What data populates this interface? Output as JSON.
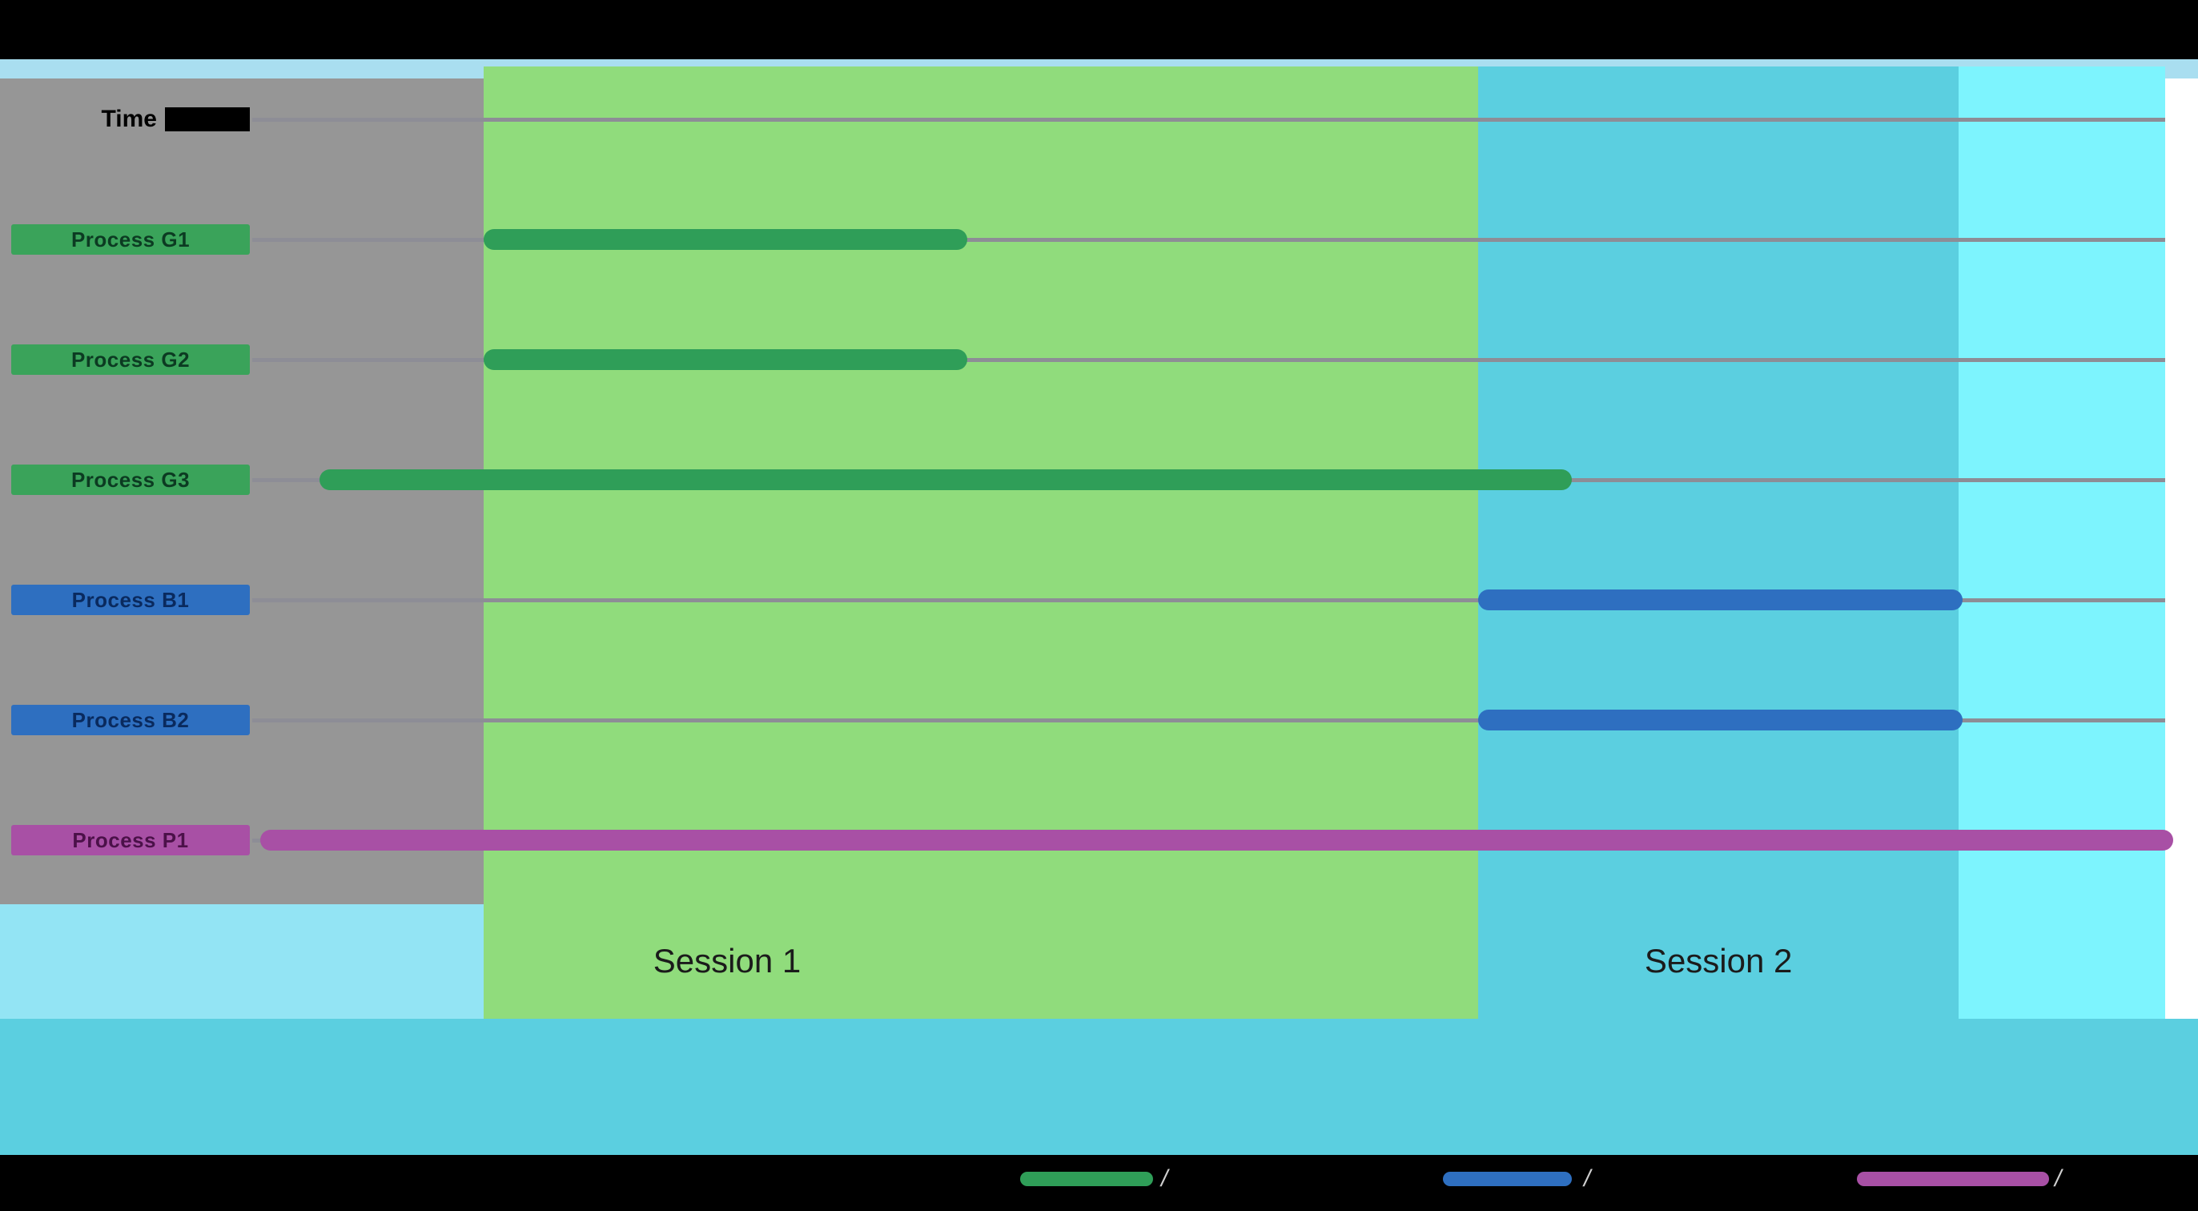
{
  "colors": {
    "background": "#000000",
    "top_band": "#a9def0",
    "bottom_band": "#5bcfe0",
    "pre_bg": "#969696",
    "session1_bg": "#90dc7c",
    "session2_bg": "#5bcfe0",
    "post_bg": "#7df4fe",
    "right_strip": "#ffffff",
    "left_lower": "#93e4f4",
    "gridline": "#8d8d96",
    "green_bar": "#2f9e58",
    "green_pill": "#3aa35a",
    "blue_bar": "#2e6fc0",
    "blue_pill": "#2e6fc0",
    "purple_bar": "#a850a5",
    "purple_pill": "#a850a5",
    "green_pill_text": "#0c3b22",
    "blue_pill_text": "#0a2a5e",
    "purple_pill_text": "#4b1149",
    "axis_text": "#000000",
    "axis_box": "#000000",
    "session_label_text": "#1b1b1b"
  },
  "chart_data": {
    "type": "gantt",
    "title": "",
    "time_axis": {
      "label": "Time",
      "unit": "relative",
      "range": [
        0,
        100
      ]
    },
    "rows": [
      {
        "id": "time-axis",
        "label": "Time",
        "category": "axis"
      },
      {
        "id": "g1",
        "label": "Process G1",
        "category": "green"
      },
      {
        "id": "g2",
        "label": "Process G2",
        "category": "green"
      },
      {
        "id": "g3",
        "label": "Process G3",
        "category": "green"
      },
      {
        "id": "b1",
        "label": "Process B1",
        "category": "blue"
      },
      {
        "id": "b2",
        "label": "Process B2",
        "category": "blue"
      },
      {
        "id": "p1",
        "label": "Process P1",
        "category": "purple"
      }
    ],
    "bars": [
      {
        "row": 1,
        "start": 12.1,
        "end": 37.4,
        "category": "green"
      },
      {
        "row": 2,
        "start": 12.1,
        "end": 37.4,
        "category": "green"
      },
      {
        "row": 3,
        "start": 3.5,
        "end": 69.0,
        "category": "green"
      },
      {
        "row": 4,
        "start": 64.1,
        "end": 89.4,
        "category": "blue"
      },
      {
        "row": 5,
        "start": 64.1,
        "end": 89.4,
        "category": "blue"
      },
      {
        "row": 6,
        "start": 0.4,
        "end": 100.4,
        "category": "purple"
      }
    ],
    "regions": [
      {
        "name": "pre-session",
        "label": "",
        "start": 0,
        "end": 12.1
      },
      {
        "name": "session-1",
        "label": "Session 1",
        "start": 12.1,
        "end": 64.1
      },
      {
        "name": "session-2",
        "label": "Session 2",
        "start": 64.1,
        "end": 89.2
      },
      {
        "name": "post-session",
        "label": "",
        "start": 89.2,
        "end": 100
      }
    ],
    "legend": {
      "position": "bottom",
      "items": [
        {
          "category": "green",
          "label": "",
          "suffix_glyph": "/"
        },
        {
          "category": "blue",
          "label": "",
          "suffix_glyph": "/"
        },
        {
          "category": "purple",
          "label": "",
          "suffix_glyph": "/"
        }
      ]
    },
    "grid": true
  }
}
